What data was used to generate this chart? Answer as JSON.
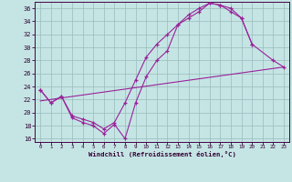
{
  "bg_color": "#c5e5e5",
  "line_color": "#992299",
  "grid_color": "#99bbbb",
  "xlabel": "Windchill (Refroidissement éolien,°C)",
  "xmin": -0.5,
  "xmax": 23.5,
  "ymin": 15.5,
  "ymax": 37.0,
  "yticks": [
    16,
    18,
    20,
    22,
    24,
    26,
    28,
    30,
    32,
    34,
    36
  ],
  "xticks": [
    0,
    1,
    2,
    3,
    4,
    5,
    6,
    7,
    8,
    9,
    10,
    11,
    12,
    13,
    14,
    15,
    16,
    17,
    18,
    19,
    20,
    21,
    22,
    23
  ],
  "curve1_x": [
    0,
    1,
    2,
    3,
    4,
    5,
    6,
    7,
    8,
    9,
    10,
    11,
    12,
    13,
    14,
    15,
    16,
    17,
    18,
    19,
    20,
    22,
    23
  ],
  "curve1_y": [
    23.5,
    21.5,
    22.5,
    19.2,
    18.5,
    18.0,
    16.8,
    18.2,
    16.0,
    21.5,
    25.5,
    28.0,
    29.5,
    33.5,
    35.0,
    36.0,
    36.8,
    36.5,
    36.0,
    34.5,
    30.5,
    28.0,
    27.0
  ],
  "curve2_x": [
    0,
    1,
    2,
    3,
    4,
    5,
    6,
    7,
    8,
    9,
    10,
    11,
    12,
    13,
    14,
    15,
    16,
    17,
    18,
    19,
    20
  ],
  "curve2_y": [
    23.5,
    21.5,
    22.5,
    19.5,
    19.0,
    18.5,
    17.5,
    18.5,
    21.5,
    25.0,
    28.5,
    30.5,
    32.0,
    33.5,
    34.5,
    35.5,
    36.8,
    36.5,
    35.5,
    34.5,
    30.5
  ],
  "line3_x": [
    0,
    23
  ],
  "line3_y": [
    21.8,
    27.0
  ]
}
